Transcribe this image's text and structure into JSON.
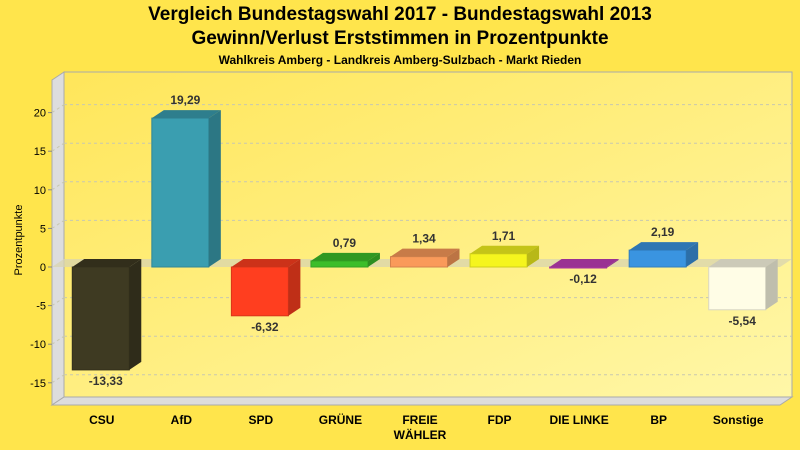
{
  "chart_data": {
    "type": "bar",
    "title": "Vergleich Bundestagswahl 2017 - Bundestagswahl 2013",
    "subtitle": "Gewinn/Verlust Erststimmen in Prozentpunkte",
    "subtitle2": "Wahlkreis Amberg - Landkreis Amberg-Sulzbach - Markt Rieden",
    "xlabel": "",
    "ylabel": "Prozentpunkte",
    "ylim": [
      -18,
      24
    ],
    "yticks": [
      20,
      15,
      10,
      5,
      0,
      -5,
      -10,
      -15
    ],
    "grid": true,
    "categories": [
      "CSU",
      "AfD",
      "SPD",
      "GRÜNE",
      "FREIE WÄHLER",
      "FDP",
      "DIE LINKE",
      "BP",
      "Sonstige"
    ],
    "values": [
      -13.33,
      19.29,
      -6.32,
      0.79,
      1.34,
      1.71,
      -0.12,
      2.19,
      -5.54
    ],
    "value_labels": [
      "-13,33",
      "19,29",
      "-6,32",
      "0,79",
      "1,34",
      "1,71",
      "-0,12",
      "2,19",
      "-5,54"
    ],
    "colors": [
      "#3E3A22",
      "#3A9EB0",
      "#FF3E1F",
      "#3CBE2A",
      "#FA9A5A",
      "#F5F51E",
      "#C03DB8",
      "#3A94E0",
      "#FFFDE6"
    ]
  }
}
